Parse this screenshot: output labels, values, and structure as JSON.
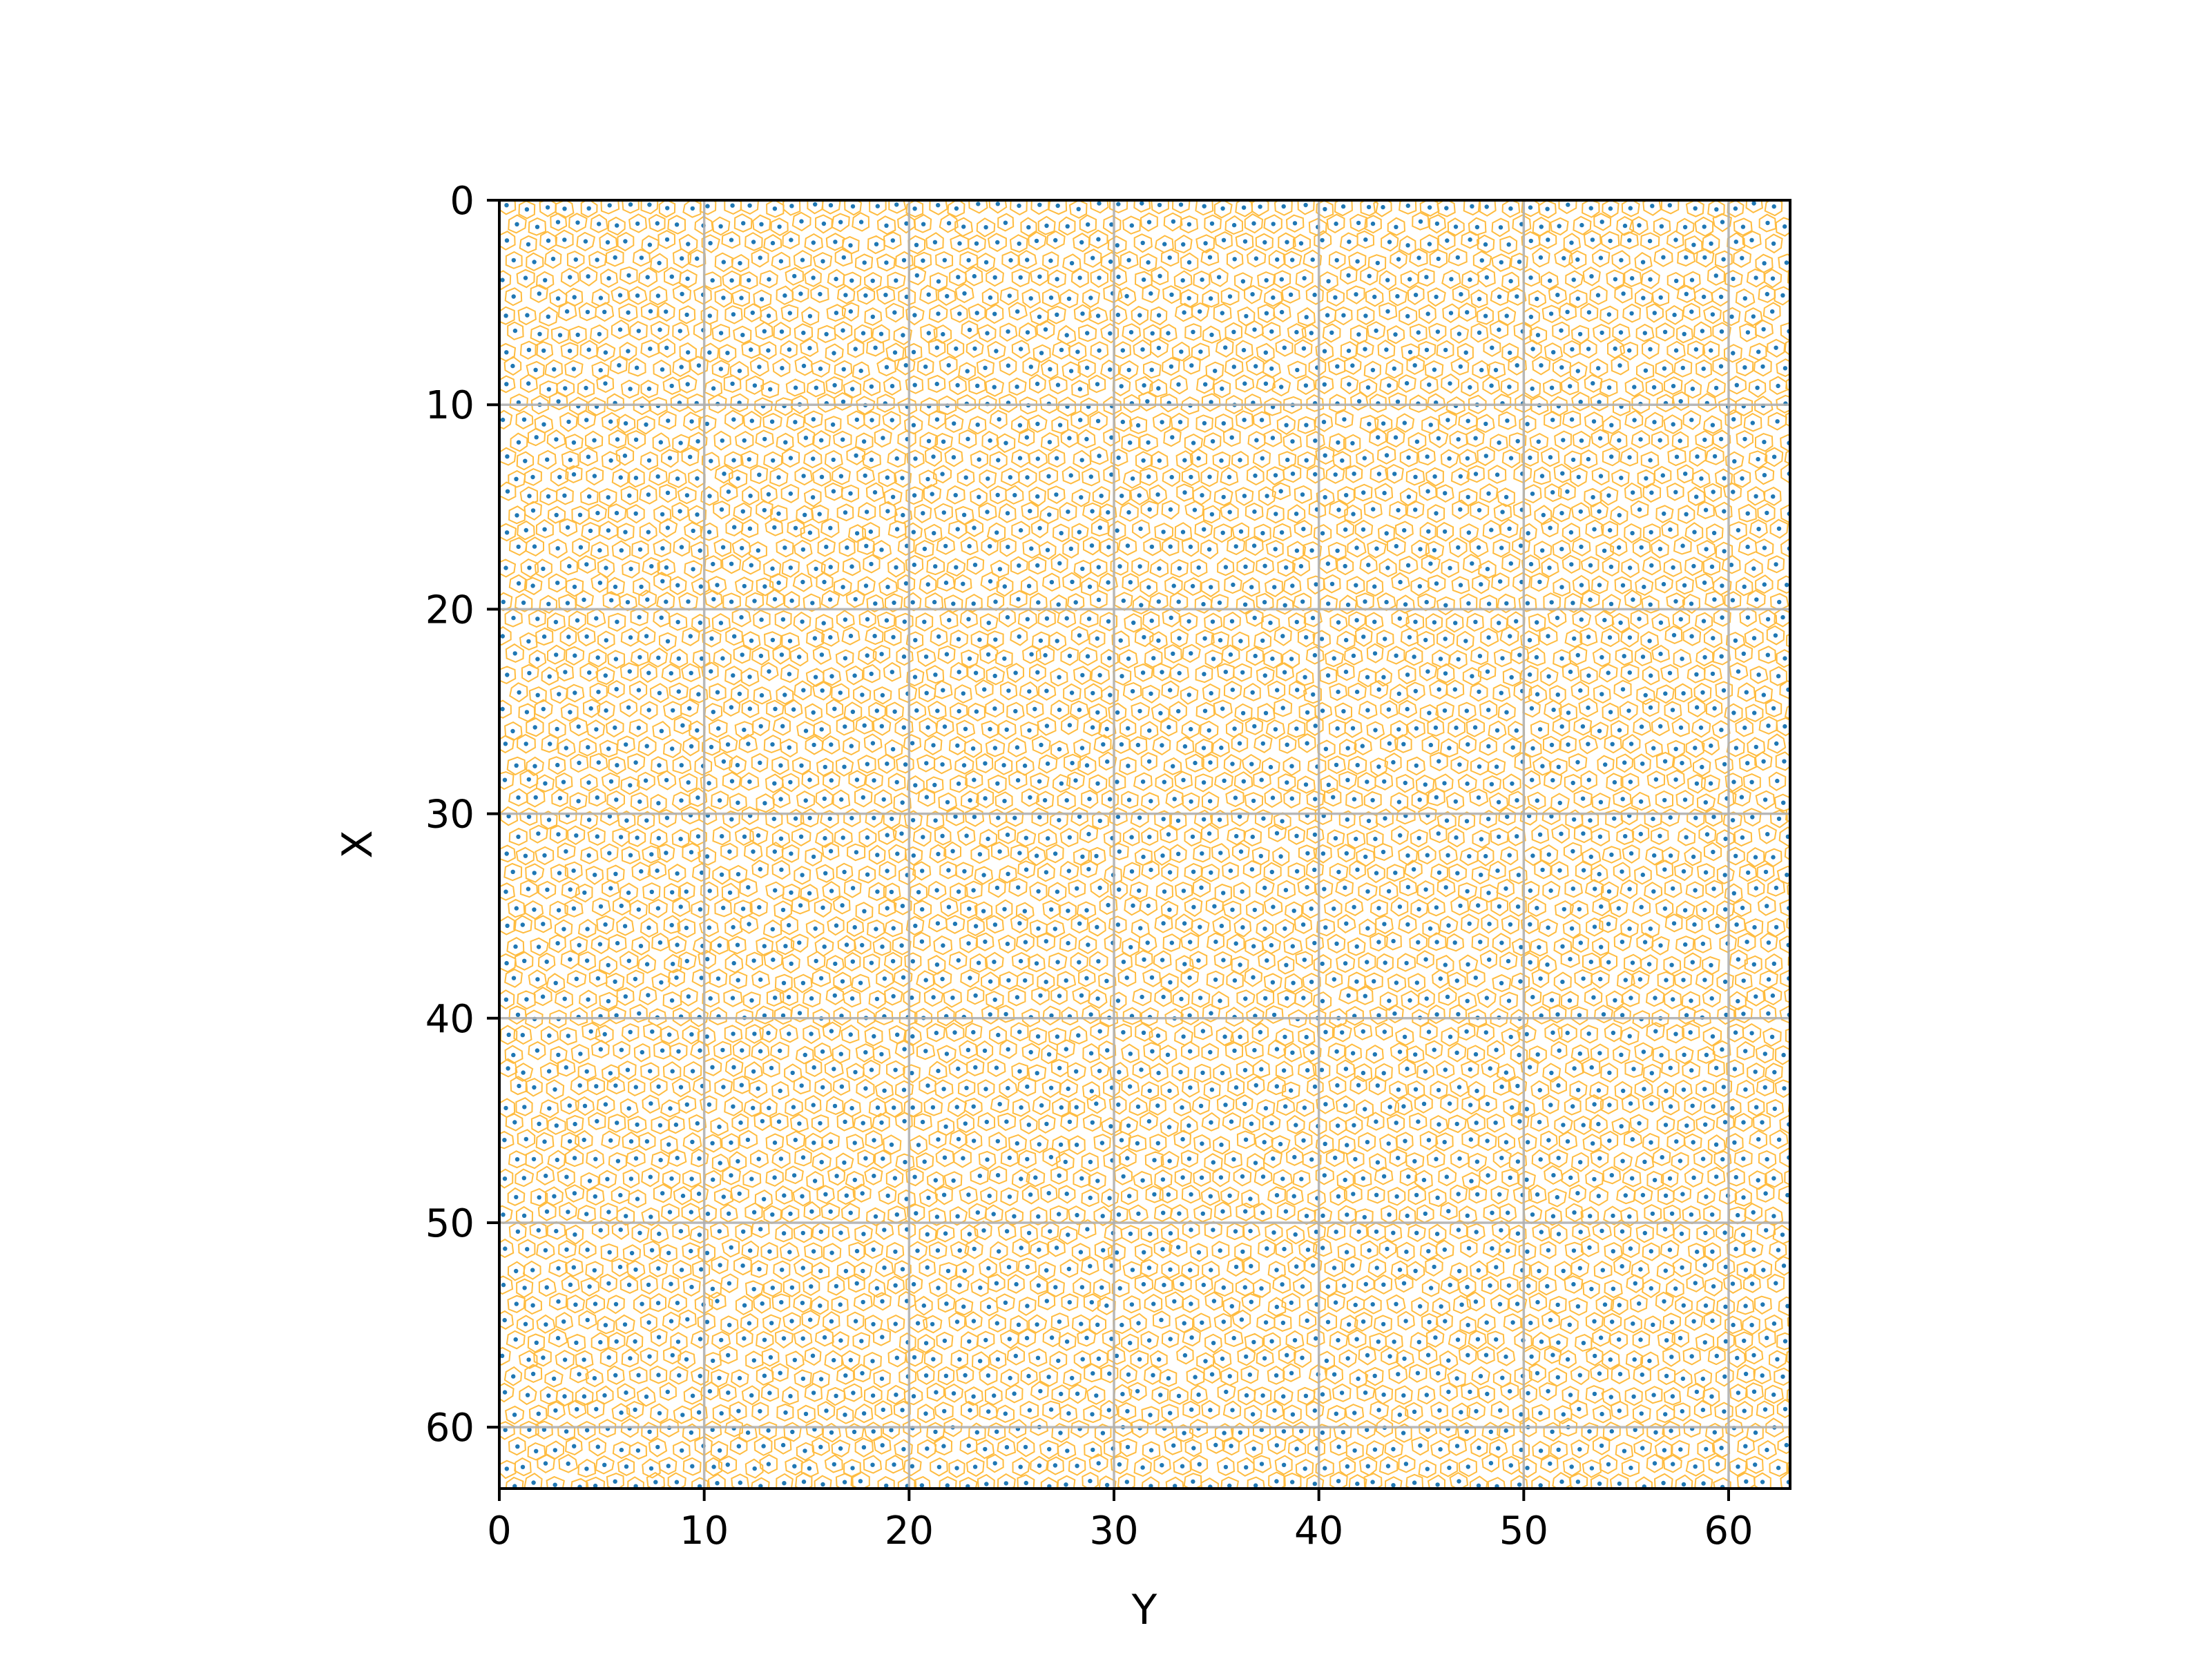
{
  "chart_data": {
    "type": "scatter",
    "title": "",
    "xlabel": "Y",
    "ylabel": "X",
    "xlim": [
      0,
      63
    ],
    "ylim": [
      63,
      0
    ],
    "y_axis_inverted": true,
    "aspect": "equal",
    "grid": true,
    "x_ticks": [
      "0",
      "10",
      "20",
      "30",
      "40",
      "50",
      "60"
    ],
    "y_ticks": [
      "0",
      "10",
      "20",
      "30",
      "40",
      "50",
      "60"
    ],
    "grid_divisions": 10,
    "points_per_unit_approx": 1.0,
    "overlay": "voronoi cell boundaries around each point",
    "colors": {
      "points": "#1f77b4",
      "voronoi_edges": "#ffa500",
      "grid": "#b0b0b0",
      "axes": "#000000"
    }
  }
}
